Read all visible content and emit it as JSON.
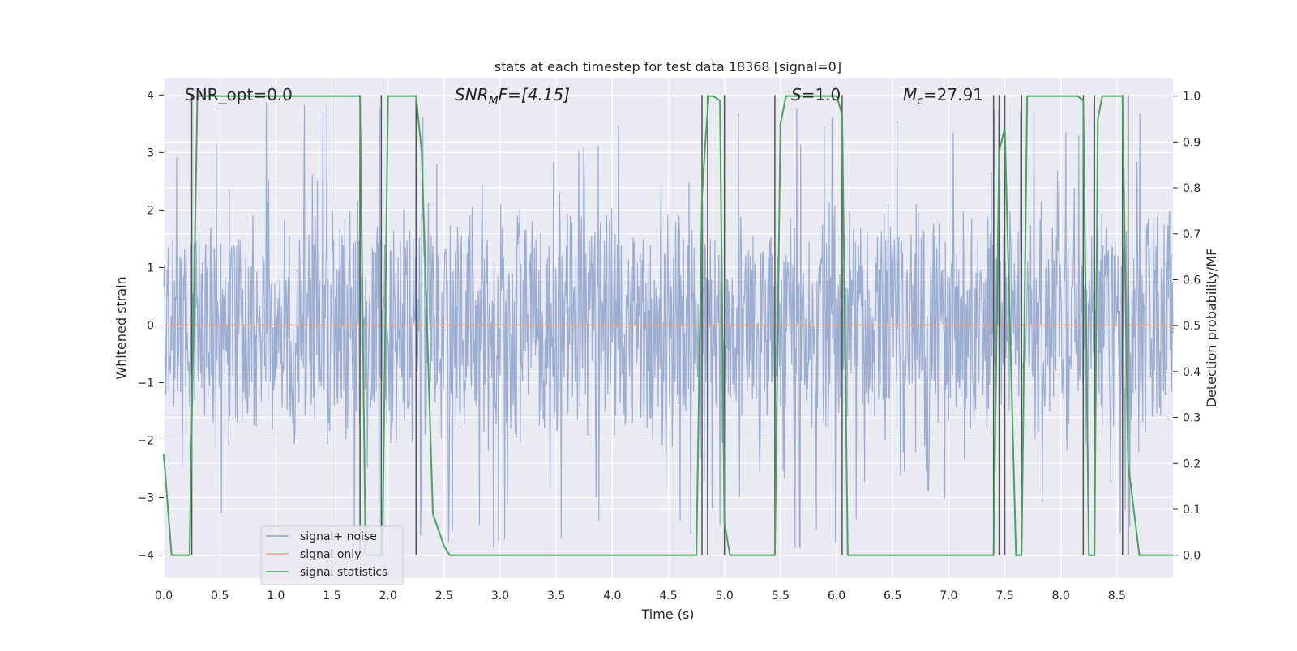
{
  "chart_data": {
    "type": "line",
    "title": "stats at each timestep for test data 18368 [signal=0]",
    "xlabel": "Time (s)",
    "ylabel": "Whitened strain",
    "ylabel_right": "Detection probability/MF",
    "xlim": [
      0.0,
      9.0
    ],
    "ylim": [
      -4.4,
      4.3
    ],
    "ylim_right": [
      -0.05,
      1.04
    ],
    "xticks": [
      0.0,
      0.5,
      1.0,
      1.5,
      2.0,
      2.5,
      3.0,
      3.5,
      4.0,
      4.5,
      5.0,
      5.5,
      6.0,
      6.5,
      7.0,
      7.5,
      8.0,
      8.5
    ],
    "yticks": [
      -4,
      -3,
      -2,
      -1,
      0,
      1,
      2,
      3,
      4
    ],
    "yticks_right": [
      0.0,
      0.1,
      0.2,
      0.3,
      0.4,
      0.5,
      0.6,
      0.7,
      0.8,
      0.9,
      1.0
    ],
    "grid": true,
    "legend_position": "lower-left",
    "annotations": {
      "snr_opt": "SNR_opt=0.0",
      "snr_mf": "SNR",
      "snr_mf_sub": "M",
      "snr_mf_rest": "F=[4.15]",
      "s": "S",
      "s_rest": "=1.0",
      "mc": "M",
      "mc_sub": "c",
      "mc_rest": "=27.91"
    },
    "series": [
      {
        "name": "signal+ noise",
        "color": "#8ea2cd",
        "description": "whitened strain noise, roughly +/-2.3 with spikes to about 3.9",
        "amplitude": 2.3,
        "peak": 3.9
      },
      {
        "name": "signal only",
        "color": "#e8a384",
        "x": [
          0.0,
          9.0
        ],
        "y": [
          0.0,
          0.0
        ]
      },
      {
        "name": "signal statistics",
        "color": "#4aa262",
        "axis": "right",
        "x": [
          0.0,
          0.07,
          0.23,
          0.3,
          1.75,
          1.8,
          1.95,
          2.0,
          2.25,
          2.3,
          2.4,
          2.5,
          2.55,
          4.75,
          4.8,
          4.83,
          4.86,
          4.9,
          4.96,
          5.0,
          5.05,
          5.13,
          5.45,
          5.5,
          5.55,
          6.0,
          6.05,
          6.1,
          6.2,
          6.25,
          6.3,
          7.4,
          7.45,
          7.5,
          7.6,
          7.65,
          7.7,
          8.15,
          8.2,
          8.25,
          8.3,
          8.33,
          8.37,
          8.55,
          8.6,
          8.7,
          8.85,
          9.0
        ],
        "y": [
          0.22,
          0.0,
          0.0,
          1.0,
          1.0,
          0.0,
          0.0,
          1.0,
          1.0,
          0.88,
          0.09,
          0.02,
          0.0,
          0.0,
          0.78,
          0.9,
          1.0,
          1.0,
          0.99,
          0.07,
          0.0,
          0.0,
          0.0,
          0.94,
          1.0,
          1.0,
          0.96,
          0.0,
          0.0,
          0.0,
          0.0,
          0.0,
          0.88,
          0.93,
          0.0,
          0.0,
          1.0,
          1.0,
          0.99,
          0.0,
          0.0,
          0.95,
          1.0,
          1.0,
          0.2,
          0.0,
          0.0,
          0.0
        ]
      }
    ],
    "trigger_lines_x": [
      0.25,
      1.75,
      1.94,
      2.25,
      4.8,
      4.85,
      5.0,
      5.45,
      6.05,
      7.4,
      7.45,
      7.5,
      7.65,
      8.2,
      8.3,
      8.55,
      8.6
    ]
  }
}
